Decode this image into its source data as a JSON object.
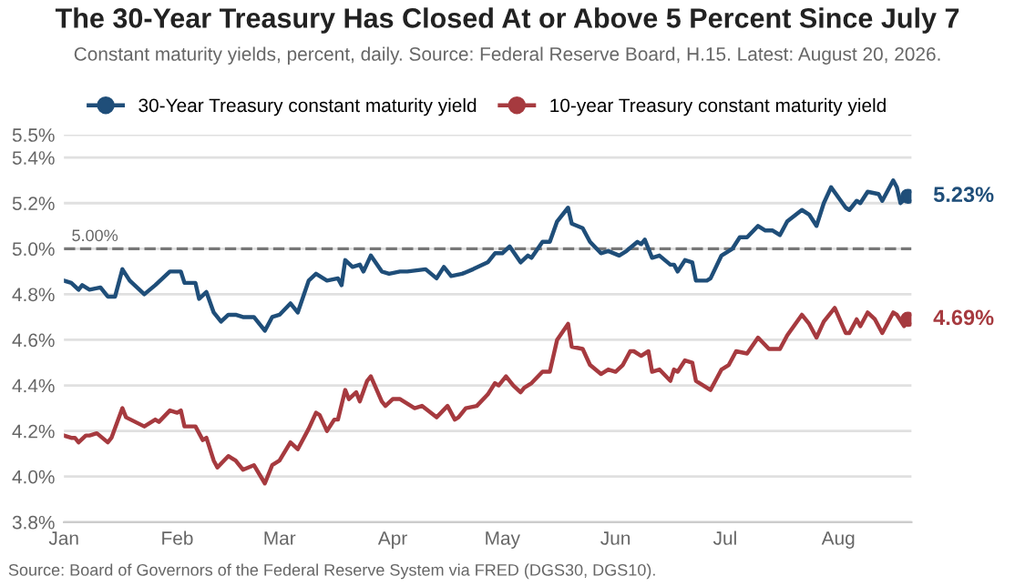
{
  "chart_data": {
    "type": "line",
    "title": "The 30-Year Treasury Has Closed At or Above 5 Percent Since July 7",
    "subtitle": "Constant maturity yields, percent, daily. Source: Federal Reserve Board, H.15. Latest: August 20, 2026.",
    "annotations": [
      "Source: Board of Governors of the Federal Reserve System via FRED (DGS30, DGS10).",
      {
        "text": "5.23%",
        "x": "2026-08-20",
        "y": 5.23
      },
      {
        "text": "4.69%",
        "x": "2026-08-20",
        "y": 4.69
      }
    ],
    "series": [
      {
        "name": "30-Year Treasury constant maturity yield",
        "color": "#1f4e79",
        "x": [
          "2026-01-01",
          "2026-01-03",
          "2026-01-05",
          "2026-01-06",
          "2026-01-08",
          "2026-01-11",
          "2026-01-13",
          "2026-01-15",
          "2026-01-17",
          "2026-01-19",
          "2026-01-23",
          "2026-01-26",
          "2026-01-30",
          "2026-02-02",
          "2026-02-03",
          "2026-02-06",
          "2026-02-07",
          "2026-02-09",
          "2026-02-11",
          "2026-02-13",
          "2026-02-15",
          "2026-02-17",
          "2026-02-19",
          "2026-02-22",
          "2026-02-25",
          "2026-02-27",
          "2026-03-01",
          "2026-03-04",
          "2026-03-06",
          "2026-03-09",
          "2026-03-11",
          "2026-03-14",
          "2026-03-17",
          "2026-03-18",
          "2026-03-19",
          "2026-03-21",
          "2026-03-23",
          "2026-03-24",
          "2026-03-26",
          "2026-03-29",
          "2026-03-31",
          "2026-04-03",
          "2026-04-05",
          "2026-04-10",
          "2026-04-13",
          "2026-04-15",
          "2026-04-17",
          "2026-04-20",
          "2026-04-23",
          "2026-04-27",
          "2026-04-29",
          "2026-05-01",
          "2026-05-03",
          "2026-05-06",
          "2026-05-08",
          "2026-05-09",
          "2026-05-12",
          "2026-05-14",
          "2026-05-16",
          "2026-05-19",
          "2026-05-20",
          "2026-05-23",
          "2026-05-25",
          "2026-05-28",
          "2026-05-30",
          "2026-06-02",
          "2026-06-04",
          "2026-06-07",
          "2026-06-08",
          "2026-06-09",
          "2026-06-11",
          "2026-06-13",
          "2026-06-16",
          "2026-06-17",
          "2026-06-18",
          "2026-06-20",
          "2026-06-22",
          "2026-06-23",
          "2026-06-26",
          "2026-06-27",
          "2026-06-30",
          "2026-07-03",
          "2026-07-05",
          "2026-07-07",
          "2026-07-10",
          "2026-07-12",
          "2026-07-14",
          "2026-07-16",
          "2026-07-18",
          "2026-07-22",
          "2026-07-24",
          "2026-07-26",
          "2026-07-28",
          "2026-07-30",
          "2026-08-03",
          "2026-08-04",
          "2026-08-06",
          "2026-08-07",
          "2026-08-09",
          "2026-08-12",
          "2026-08-13",
          "2026-08-16",
          "2026-08-17",
          "2026-08-18",
          "2026-08-20"
        ],
        "values": [
          4.86,
          4.85,
          4.82,
          4.84,
          4.82,
          4.83,
          4.79,
          4.79,
          4.91,
          4.86,
          4.8,
          4.84,
          4.9,
          4.9,
          4.85,
          4.85,
          4.78,
          4.81,
          4.72,
          4.68,
          4.71,
          4.71,
          4.7,
          4.7,
          4.64,
          4.7,
          4.71,
          4.76,
          4.72,
          4.86,
          4.89,
          4.86,
          4.87,
          4.84,
          4.95,
          4.92,
          4.93,
          4.9,
          4.97,
          4.9,
          4.89,
          4.9,
          4.9,
          4.91,
          4.87,
          4.92,
          4.88,
          4.89,
          4.91,
          4.94,
          4.98,
          4.98,
          5.01,
          4.94,
          4.97,
          4.96,
          5.03,
          5.03,
          5.12,
          5.18,
          5.11,
          5.09,
          5.03,
          4.98,
          4.99,
          4.97,
          4.99,
          5.03,
          5.02,
          5.04,
          4.96,
          4.97,
          4.93,
          4.93,
          4.9,
          4.95,
          4.94,
          4.86,
          4.86,
          4.87,
          4.97,
          5.0,
          5.05,
          5.05,
          5.1,
          5.08,
          5.08,
          5.06,
          5.12,
          5.17,
          5.15,
          5.1,
          5.2,
          5.27,
          5.18,
          5.17,
          5.21,
          5.2,
          5.25,
          5.24,
          5.21,
          5.3,
          5.27,
          5.2,
          5.23
        ]
      },
      {
        "name": "10-year Treasury constant maturity yield",
        "color": "#a63a3f",
        "x": [
          "2026-01-01",
          "2026-01-03",
          "2026-01-04",
          "2026-01-05",
          "2026-01-07",
          "2026-01-08",
          "2026-01-10",
          "2026-01-13",
          "2026-01-14",
          "2026-01-17",
          "2026-01-18",
          "2026-01-23",
          "2026-01-26",
          "2026-01-27",
          "2026-01-30",
          "2026-02-01",
          "2026-02-02",
          "2026-02-03",
          "2026-02-06",
          "2026-02-08",
          "2026-02-09",
          "2026-02-11",
          "2026-02-12",
          "2026-02-15",
          "2026-02-17",
          "2026-02-19",
          "2026-02-22",
          "2026-02-25",
          "2026-02-27",
          "2026-03-01",
          "2026-03-04",
          "2026-03-06",
          "2026-03-09",
          "2026-03-11",
          "2026-03-12",
          "2026-03-14",
          "2026-03-16",
          "2026-03-17",
          "2026-03-19",
          "2026-03-20",
          "2026-03-22",
          "2026-03-23",
          "2026-03-25",
          "2026-03-26",
          "2026-03-29",
          "2026-03-30",
          "2026-04-01",
          "2026-04-03",
          "2026-04-05",
          "2026-04-07",
          "2026-04-09",
          "2026-04-13",
          "2026-04-16",
          "2026-04-18",
          "2026-04-19",
          "2026-04-21",
          "2026-04-24",
          "2026-04-27",
          "2026-04-29",
          "2026-04-30",
          "2026-05-02",
          "2026-05-04",
          "2026-05-06",
          "2026-05-07",
          "2026-05-09",
          "2026-05-12",
          "2026-05-14",
          "2026-05-16",
          "2026-05-19",
          "2026-05-20",
          "2026-05-23",
          "2026-05-25",
          "2026-05-28",
          "2026-05-30",
          "2026-06-01",
          "2026-06-03",
          "2026-06-05",
          "2026-06-06",
          "2026-06-08",
          "2026-06-10",
          "2026-06-11",
          "2026-06-13",
          "2026-06-16",
          "2026-06-17",
          "2026-06-18",
          "2026-06-20",
          "2026-06-22",
          "2026-06-23",
          "2026-06-26",
          "2026-06-27",
          "2026-06-30",
          "2026-07-02",
          "2026-07-04",
          "2026-07-07",
          "2026-07-10",
          "2026-07-13",
          "2026-07-16",
          "2026-07-18",
          "2026-07-22",
          "2026-07-24",
          "2026-07-26",
          "2026-07-28",
          "2026-07-31",
          "2026-08-03",
          "2026-08-04",
          "2026-08-06",
          "2026-08-07",
          "2026-08-09",
          "2026-08-11",
          "2026-08-13",
          "2026-08-16",
          "2026-08-17",
          "2026-08-19",
          "2026-08-20"
        ],
        "values": [
          4.18,
          4.17,
          4.17,
          4.15,
          4.18,
          4.18,
          4.19,
          4.15,
          4.17,
          4.3,
          4.26,
          4.22,
          4.25,
          4.24,
          4.29,
          4.28,
          4.29,
          4.22,
          4.22,
          4.16,
          4.17,
          4.07,
          4.04,
          4.09,
          4.07,
          4.03,
          4.05,
          3.97,
          4.05,
          4.07,
          4.15,
          4.12,
          4.21,
          4.28,
          4.27,
          4.2,
          4.25,
          4.25,
          4.38,
          4.34,
          4.37,
          4.33,
          4.42,
          4.44,
          4.33,
          4.31,
          4.34,
          4.34,
          4.32,
          4.3,
          4.31,
          4.26,
          4.31,
          4.25,
          4.26,
          4.3,
          4.31,
          4.36,
          4.41,
          4.4,
          4.44,
          4.4,
          4.37,
          4.39,
          4.41,
          4.46,
          4.46,
          4.6,
          4.67,
          4.57,
          4.56,
          4.49,
          4.45,
          4.47,
          4.46,
          4.49,
          4.55,
          4.55,
          4.53,
          4.55,
          4.46,
          4.47,
          4.42,
          4.47,
          4.46,
          4.51,
          4.5,
          4.42,
          4.39,
          4.38,
          4.47,
          4.49,
          4.55,
          4.54,
          4.61,
          4.56,
          4.56,
          4.62,
          4.71,
          4.67,
          4.61,
          4.68,
          4.74,
          4.63,
          4.63,
          4.69,
          4.66,
          4.72,
          4.69,
          4.63,
          4.72,
          4.71,
          4.66,
          4.69
        ],
        "type": "line"
      }
    ],
    "xlim": [
      "2026-01-01",
      "2026-08-21"
    ],
    "xticks": [
      {
        "value": "2026-01-01",
        "label": "Jan"
      },
      {
        "value": "2026-02-01",
        "label": "Feb"
      },
      {
        "value": "2026-03-01",
        "label": "Mar"
      },
      {
        "value": "2026-04-01",
        "label": "Apr"
      },
      {
        "value": "2026-05-01",
        "label": "May"
      },
      {
        "value": "2026-06-01",
        "label": "Jun"
      },
      {
        "value": "2026-07-01",
        "label": "Jul"
      },
      {
        "value": "2026-08-01",
        "label": "Aug"
      }
    ],
    "ylim": [
      3.8,
      5.5
    ],
    "yticks": [
      {
        "value": 3.8,
        "label": "3.8%"
      },
      {
        "value": 4.0,
        "label": "4.0%"
      },
      {
        "value": 4.2,
        "label": "4.2%"
      },
      {
        "value": 4.4,
        "label": "4.4%"
      },
      {
        "value": 4.6,
        "label": "4.6%"
      },
      {
        "value": 4.8,
        "label": "4.8%"
      },
      {
        "value": 5.0,
        "label": "5.0%"
      },
      {
        "value": 5.2,
        "label": "5.2%"
      },
      {
        "value": 5.4,
        "label": "5.4%"
      },
      {
        "value": 5.5,
        "label": "5.5%"
      }
    ],
    "ref_lines": [
      {
        "axis": "y",
        "value": 5.0,
        "label": "5.00%",
        "color": "#777777",
        "line_style": "dashed"
      }
    ],
    "grid": "y",
    "legend": "top",
    "marker": "none",
    "line_style": "solid"
  }
}
